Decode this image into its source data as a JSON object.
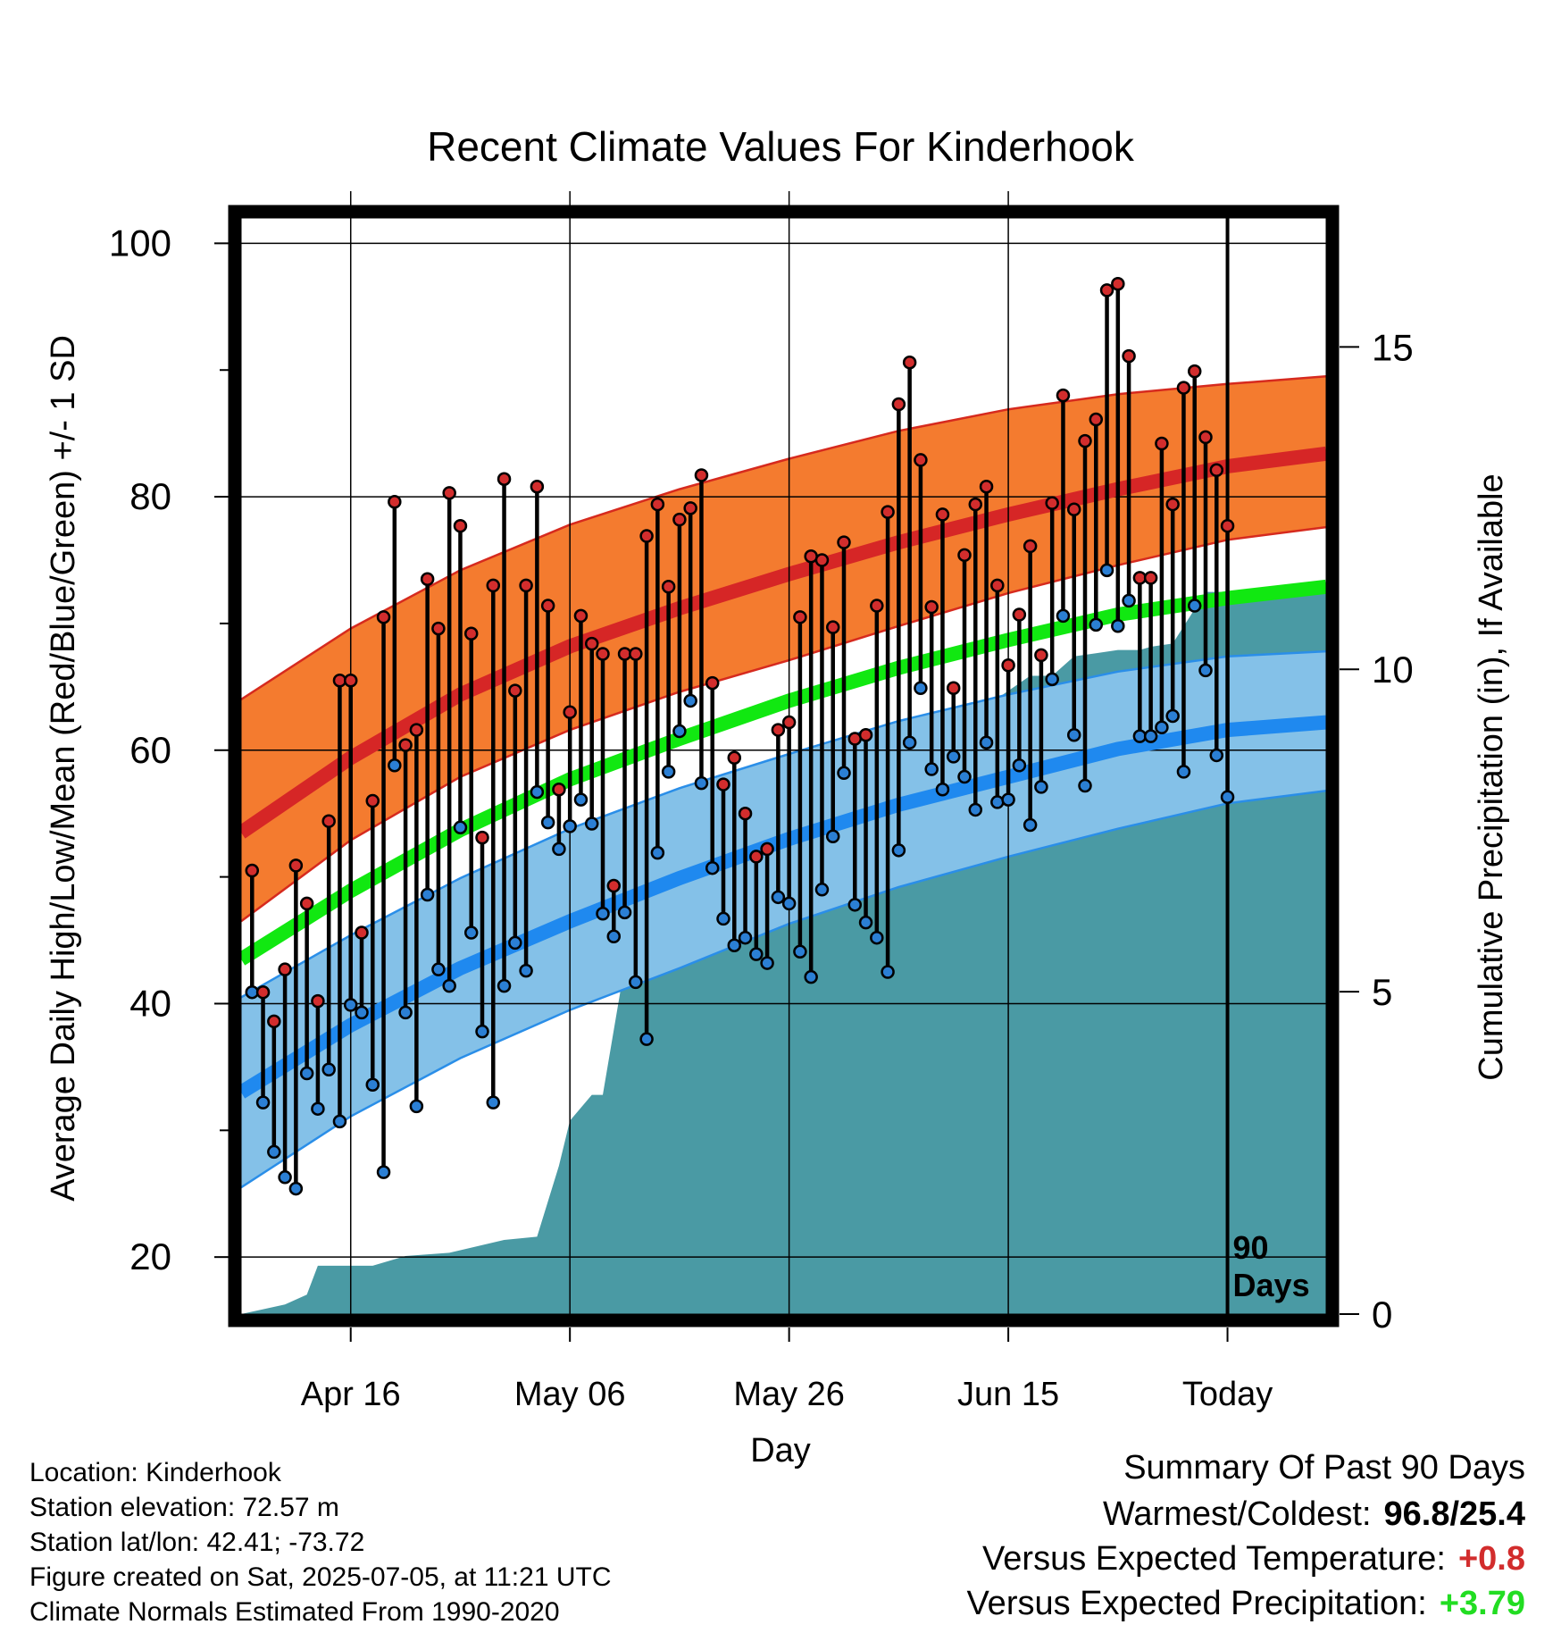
{
  "chart_data": {
    "type": "line",
    "title": "Recent Climate Values For Kinderhook",
    "xlabel": "Day",
    "ylabel_left": "Average Daily High/Low/Mean (Red/Blue/Green) +/- 1 SD",
    "ylabel_right": "Cumulative Precipitation (in), If Available",
    "x_day_range": [
      -90,
      9
    ],
    "ylim_temp": [
      15.5,
      102
    ],
    "ylim_precip": [
      0,
      17.0
    ],
    "y_ticks_left": [
      20,
      40,
      60,
      80,
      100
    ],
    "y_ticks_right": [
      0,
      5,
      10,
      15
    ],
    "x_ticks": [
      {
        "day": -80,
        "label": "Apr 16"
      },
      {
        "day": -60,
        "label": "May 06"
      },
      {
        "day": -40,
        "label": "May 26"
      },
      {
        "day": -20,
        "label": "Jun 15"
      },
      {
        "day": 0,
        "label": "Today"
      }
    ],
    "grid": true,
    "today_label": "90\nDays",
    "normals": {
      "days": [
        -90,
        -80,
        -70,
        -60,
        -50,
        -40,
        -30,
        -20,
        -10,
        0,
        9
      ],
      "high_mean": [
        53.5,
        59.4,
        64.4,
        68.2,
        71.2,
        73.9,
        76.4,
        78.6,
        80.6,
        82.4,
        83.4
      ],
      "high_upper": [
        64.0,
        69.6,
        74.2,
        77.8,
        80.6,
        83.0,
        85.2,
        86.9,
        88.1,
        88.9,
        89.5
      ],
      "high_lower": [
        46.5,
        52.9,
        57.9,
        61.6,
        64.6,
        67.1,
        69.8,
        72.4,
        74.6,
        76.6,
        77.6
      ],
      "mean": [
        43.5,
        48.9,
        53.7,
        57.7,
        60.9,
        63.9,
        66.5,
        68.7,
        70.7,
        72.0,
        72.9
      ],
      "low_mean": [
        33.0,
        38.3,
        42.8,
        46.5,
        49.9,
        53.0,
        55.7,
        57.9,
        60.1,
        61.6,
        62.2
      ],
      "low_upper": [
        40.5,
        45.4,
        49.9,
        53.8,
        57.0,
        59.7,
        62.3,
        64.4,
        66.2,
        67.4,
        67.8
      ],
      "low_lower": [
        25.5,
        31.1,
        35.7,
        39.5,
        42.8,
        46.3,
        49.2,
        51.6,
        53.8,
        55.8,
        56.8
      ]
    },
    "daily": {
      "start_day": -89,
      "high": [
        50.5,
        40.9,
        38.6,
        42.7,
        50.9,
        47.9,
        40.2,
        54.4,
        65.5,
        65.5,
        45.6,
        56.0,
        70.5,
        79.6,
        60.4,
        61.6,
        73.5,
        69.6,
        80.3,
        77.7,
        69.2,
        53.1,
        73.0,
        81.4,
        64.7,
        73.0,
        80.8,
        71.4,
        56.9,
        63.0,
        70.6,
        68.4,
        67.6,
        49.3,
        67.6,
        67.6,
        76.9,
        79.4,
        72.9,
        78.2,
        79.1,
        81.7,
        65.3,
        57.3,
        59.4,
        55.0,
        51.6,
        52.2,
        61.6,
        62.2,
        70.5,
        75.3,
        75.0,
        69.7,
        76.4,
        60.9,
        61.2,
        71.4,
        78.8,
        87.3,
        90.6,
        82.9,
        71.3,
        78.6,
        64.9,
        75.4,
        79.4,
        80.8,
        73.0,
        66.7,
        70.7,
        76.1,
        67.5,
        79.5,
        88.0,
        79.0,
        84.4,
        86.1,
        96.3,
        96.8,
        91.1,
        73.6,
        73.6,
        84.2,
        79.4,
        88.6,
        89.9,
        84.7,
        82.1,
        77.7
      ],
      "low": [
        40.9,
        32.2,
        28.3,
        26.3,
        25.4,
        34.5,
        31.7,
        34.8,
        30.7,
        39.9,
        39.3,
        33.6,
        26.7,
        58.8,
        39.3,
        31.9,
        48.6,
        42.7,
        41.4,
        53.9,
        45.6,
        37.8,
        32.2,
        41.4,
        44.8,
        42.6,
        56.7,
        54.3,
        52.2,
        54.0,
        56.1,
        54.2,
        47.1,
        45.3,
        47.2,
        41.7,
        37.2,
        51.9,
        58.3,
        61.5,
        63.9,
        57.4,
        50.7,
        46.7,
        44.6,
        45.2,
        43.9,
        43.2,
        48.4,
        47.9,
        44.1,
        42.1,
        49.0,
        53.2,
        58.2,
        47.8,
        46.4,
        45.2,
        42.5,
        52.1,
        60.6,
        64.9,
        58.5,
        56.9,
        59.5,
        57.9,
        55.3,
        60.6,
        55.9,
        56.1,
        58.8,
        54.1,
        57.1,
        65.6,
        70.6,
        61.2,
        57.2,
        69.9,
        74.2,
        69.8,
        71.8,
        61.1,
        61.1,
        61.8,
        62.7,
        58.3,
        71.4,
        66.3,
        59.6,
        56.3
      ]
    },
    "precip": {
      "days": [
        -90,
        -86,
        -84,
        -83,
        -78,
        -75,
        -71,
        -66,
        -63,
        -61,
        -60,
        -58,
        -57,
        -55,
        -51,
        -50,
        -48,
        -45,
        -43,
        -41,
        -38,
        -36,
        -35,
        -34,
        -25,
        -22,
        -21,
        -18,
        -16,
        -14,
        -12,
        -10,
        -8,
        -7,
        -5,
        -2,
        9
      ],
      "value": [
        0,
        0.15,
        0.3,
        0.75,
        0.75,
        0.9,
        0.95,
        1.15,
        1.2,
        2.3,
        3.0,
        3.4,
        3.4,
        5.4,
        5.45,
        5.6,
        5.6,
        5.9,
        6.2,
        6.2,
        6.2,
        6.35,
        8.6,
        8.6,
        8.6,
        9.1,
        9.55,
        9.9,
        9.9,
        10.2,
        10.25,
        10.3,
        10.3,
        10.35,
        10.4,
        11.2,
        11.2
      ]
    },
    "colors": {
      "high_band": "#f47b2f",
      "high_line": "#d62626",
      "high_edge": "#d62a1e",
      "mean_line": "#11e811",
      "low_band": "#84c1e8",
      "low_line": "#1f89ef",
      "low_edge": "#2a8ee8",
      "precip": "#4a9aa4",
      "high_dot": "#d22d2d",
      "low_dot": "#2b7fd4"
    }
  },
  "info": {
    "location": "Location: Kinderhook",
    "elevation": "Station elevation: 72.57 m",
    "latlon": "Station lat/lon: 42.41; -73.72",
    "created": "Figure created on Sat, 2025-07-05, at 11:21 UTC",
    "normals": "Climate Normals Estimated From 1990-2020"
  },
  "summary": {
    "heading": "Summary Of Past 90 Days",
    "warmest_coldest_label": "Warmest/Coldest:",
    "warmest_coldest_value": "96.8/25.4",
    "temp_label": "Versus Expected Temperature:",
    "temp_value": "+0.8",
    "temp_color": "#d22d2d",
    "precip_label": "Versus Expected Precipitation:",
    "precip_value": "+3.79",
    "precip_color": "#22dd22"
  }
}
